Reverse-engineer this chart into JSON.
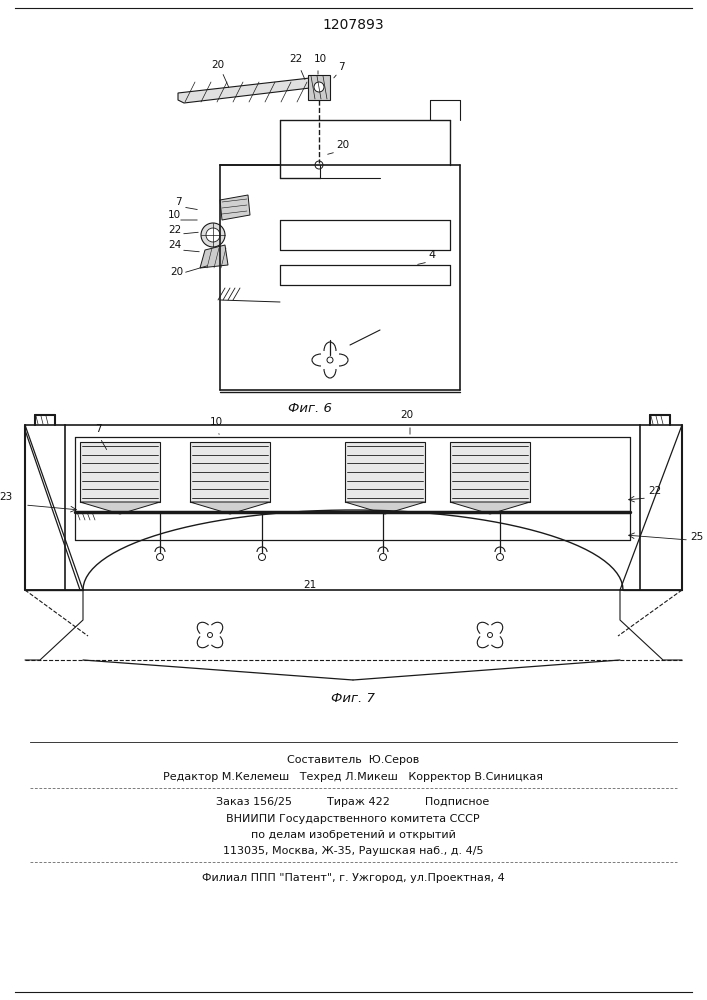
{
  "patent_number": "1207893",
  "bg_color": "#ffffff",
  "fig6_label": "Фиг. 6",
  "fig7_label": "Фиг. 7",
  "footer_line1": "Составитель  Ю.Серов",
  "footer_line2": "Редактор М.Келемеш   Техред Л.Микеш   Корректор В.Синицкая",
  "footer_line3": "Заказ 156/25          Тираж 422          Подписное",
  "footer_line4": "ВНИИПИ Государственного комитета СССР",
  "footer_line5": "по делам изобретений и открытий",
  "footer_line6": "113035, Москва, Ж-35, Раушская наб., д. 4/5",
  "footer_line7": "Филиал ППП \"Патент\", г. Ужгород, ул.Проектная, 4",
  "line_color": "#1a1a1a",
  "text_color": "#111111"
}
